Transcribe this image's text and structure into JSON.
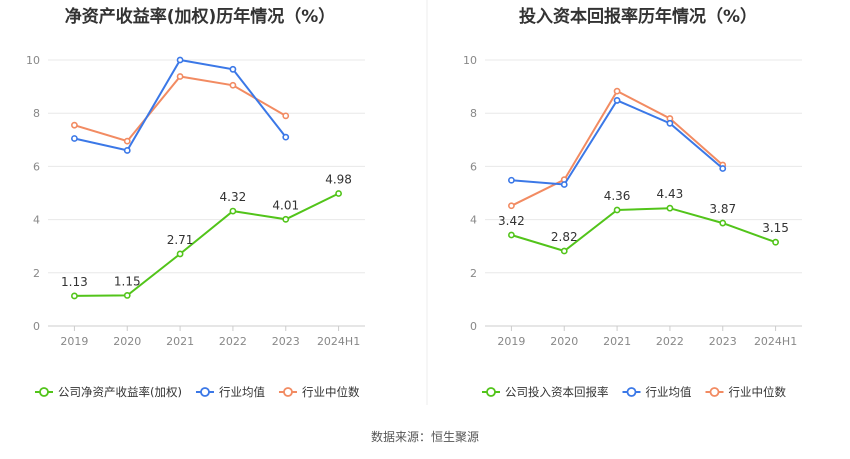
{
  "chart_data": [
    {
      "type": "line",
      "title": "净资产收益率(加权)历年情况（%）",
      "categories": [
        "2019",
        "2020",
        "2021",
        "2022",
        "2023",
        "2024H1"
      ],
      "ylim": [
        0,
        10
      ],
      "yticks": [
        0,
        2,
        4,
        6,
        8,
        10
      ],
      "grid": true,
      "legend_position": "bottom",
      "series": [
        {
          "name": "公司净资产收益率(加权)",
          "color": "#52c41a",
          "values": [
            1.13,
            1.15,
            2.71,
            4.32,
            4.01,
            4.98
          ],
          "labels": [
            "1.13",
            "1.15",
            "2.71",
            "4.32",
            "4.01",
            "4.98"
          ]
        },
        {
          "name": "行业均值",
          "color": "#3b78e7",
          "values": [
            7.05,
            6.6,
            10.0,
            9.65,
            7.1,
            null
          ]
        },
        {
          "name": "行业中位数",
          "color": "#f28b62",
          "values": [
            7.55,
            6.95,
            9.38,
            9.05,
            7.9,
            null
          ]
        }
      ]
    },
    {
      "type": "line",
      "title": "投入资本回报率历年情况（%）",
      "categories": [
        "2019",
        "2020",
        "2021",
        "2022",
        "2023",
        "2024H1"
      ],
      "ylim": [
        0,
        10
      ],
      "yticks": [
        0,
        2,
        4,
        6,
        8,
        10
      ],
      "grid": true,
      "legend_position": "bottom",
      "series": [
        {
          "name": "公司投入资本回报率",
          "color": "#52c41a",
          "values": [
            3.42,
            2.82,
            4.36,
            4.43,
            3.87,
            3.15
          ],
          "labels": [
            "3.42",
            "2.82",
            "4.36",
            "4.43",
            "3.87",
            "3.15"
          ]
        },
        {
          "name": "行业均值",
          "color": "#3b78e7",
          "values": [
            5.48,
            5.32,
            8.48,
            7.62,
            5.92,
            null
          ]
        },
        {
          "name": "行业中位数",
          "color": "#f28b62",
          "values": [
            4.52,
            5.5,
            8.83,
            7.8,
            6.05,
            null
          ]
        }
      ]
    }
  ],
  "footer": {
    "source": "数据来源：恒生聚源"
  }
}
